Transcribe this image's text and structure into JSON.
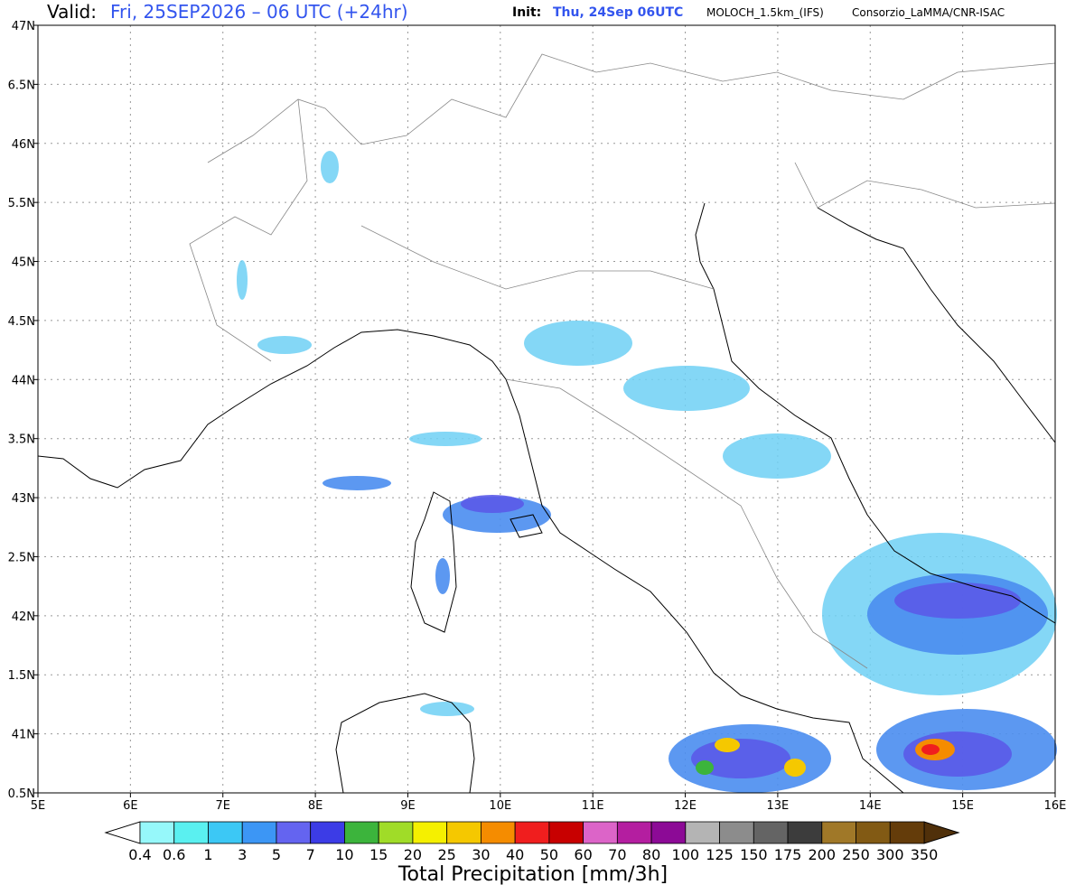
{
  "header": {
    "valid_label": "Valid:",
    "valid": "Fri, 25SEP2026 – 06 UTC (+24hr)",
    "init_label": "Init:",
    "init": "Thu, 24Sep 06UTC",
    "model": "MOLOCH_1.5km_(IFS)",
    "source": "Consorzio_LaMMA/CNR-ISAC"
  },
  "map": {
    "lon_range": [
      5,
      16
    ],
    "lat_range": [
      40.5,
      47
    ],
    "lon_ticks": [
      {
        "value": 5,
        "label": "5E"
      },
      {
        "value": 6,
        "label": "6E"
      },
      {
        "value": 7,
        "label": "7E"
      },
      {
        "value": 8,
        "label": "8E"
      },
      {
        "value": 9,
        "label": "9E"
      },
      {
        "value": 10,
        "label": "10E"
      },
      {
        "value": 11,
        "label": "11E"
      },
      {
        "value": 12,
        "label": "12E"
      },
      {
        "value": 13,
        "label": "13E"
      },
      {
        "value": 14,
        "label": "14E"
      },
      {
        "value": 15,
        "label": "15E"
      },
      {
        "value": 16,
        "label": "16E"
      }
    ],
    "lat_ticks": [
      {
        "value": 40.5,
        "label": "0.5N"
      },
      {
        "value": 41,
        "label": "41N"
      },
      {
        "value": 41.5,
        "label": "1.5N"
      },
      {
        "value": 42,
        "label": "42N"
      },
      {
        "value": 42.5,
        "label": "2.5N"
      },
      {
        "value": 43,
        "label": "43N"
      },
      {
        "value": 43.5,
        "label": "3.5N"
      },
      {
        "value": 44,
        "label": "44N"
      },
      {
        "value": 44.5,
        "label": "4.5N"
      },
      {
        "value": 45,
        "label": "45N"
      },
      {
        "value": 45.5,
        "label": "5.5N"
      },
      {
        "value": 46,
        "label": "46N"
      },
      {
        "value": 46.5,
        "label": "6.5N"
      },
      {
        "value": 47,
        "label": "47N"
      }
    ]
  },
  "colorbar": {
    "title": "Total Precipitation [mm/3h]",
    "levels": [
      0.4,
      0.6,
      1,
      3,
      5,
      7,
      10,
      15,
      20,
      25,
      30,
      40,
      50,
      60,
      70,
      80,
      100,
      125,
      150,
      175,
      200,
      250,
      300,
      350
    ],
    "colors": [
      "#96f8fa",
      "#5af0f0",
      "#3cc8f5",
      "#3c96f5",
      "#6464f0",
      "#3c3ce6",
      "#3cb43c",
      "#a0dc28",
      "#f5f000",
      "#f5c800",
      "#f58c00",
      "#f01e1e",
      "#c80000",
      "#dc64c8",
      "#b41ea0",
      "#8c0a96",
      "#b4b4b4",
      "#8c8c8c",
      "#646464",
      "#3c3c3c",
      "#a07828",
      "#825a14",
      "#643c0a"
    ],
    "under_color": "#ffffff",
    "over_color": "#50300a"
  }
}
